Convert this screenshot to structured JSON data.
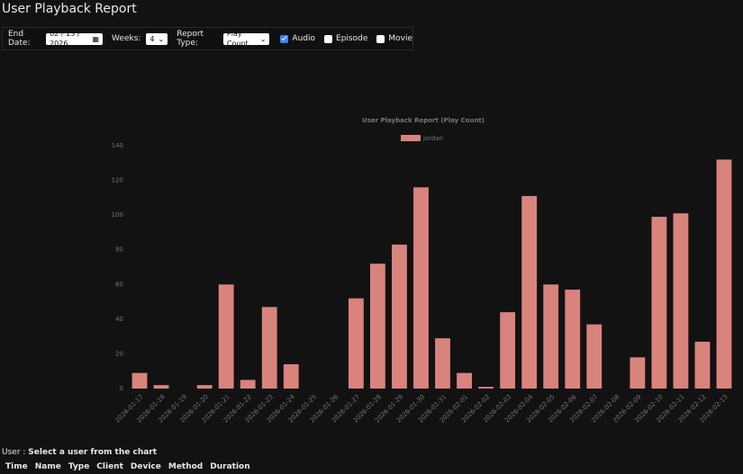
{
  "header": {
    "title": "User Playback Report"
  },
  "controls": {
    "end_date": {
      "label": "End Date:",
      "value": "02 / 13 / 2026"
    },
    "weeks": {
      "label": "Weeks:",
      "value": "4"
    },
    "report_type": {
      "label": "Report Type:",
      "value": "Play Count"
    },
    "filters": [
      {
        "label": "Audio",
        "checked": true
      },
      {
        "label": "Episode",
        "checked": false
      },
      {
        "label": "Movie",
        "checked": false
      }
    ]
  },
  "chart_data": {
    "type": "bar",
    "title": "User Playback Report (Play Count)",
    "categories": [
      "2026-01-17",
      "2026-01-18",
      "2026-01-19",
      "2026-01-20",
      "2026-01-21",
      "2026-01-22",
      "2026-01-23",
      "2026-01-24",
      "2026-01-25",
      "2026-01-26",
      "2026-01-27",
      "2026-01-28",
      "2026-01-29",
      "2026-01-30",
      "2026-01-31",
      "2026-02-01",
      "2026-02-02",
      "2026-02-03",
      "2026-02-04",
      "2026-02-05",
      "2026-02-06",
      "2026-02-07",
      "2026-02-08",
      "2026-02-09",
      "2026-02-10",
      "2026-02-11",
      "2026-02-12",
      "2026-02-13"
    ],
    "series": [
      {
        "name": "jordan",
        "color": "#d9837d",
        "values": [
          9,
          2,
          0,
          2,
          60,
          5,
          47,
          14,
          0,
          0,
          52,
          72,
          83,
          116,
          29,
          9,
          1,
          44,
          111,
          60,
          57,
          37,
          0,
          18,
          99,
          101,
          27,
          132
        ]
      }
    ],
    "ylim": [
      0,
      140
    ],
    "yticks": [
      0,
      20,
      40,
      60,
      80,
      100,
      120,
      140
    ],
    "grid": false,
    "legend": "top"
  },
  "user_line": {
    "label": "User :",
    "value": "Select a user from the chart"
  },
  "table": {
    "columns": [
      "Time",
      "Name",
      "Type",
      "Client",
      "Device",
      "Method",
      "Duration"
    ]
  }
}
